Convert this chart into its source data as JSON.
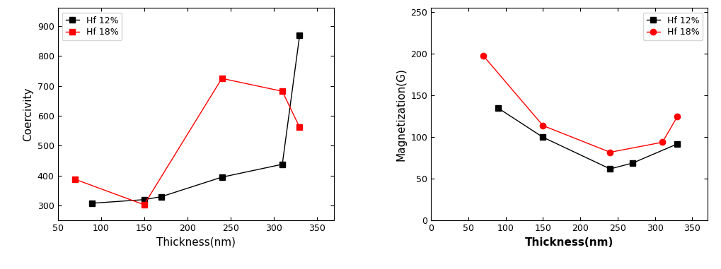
{
  "coercivity": {
    "hf12_x": [
      90,
      150,
      170,
      240,
      310,
      330
    ],
    "hf12_y": [
      308,
      320,
      330,
      395,
      438,
      868
    ],
    "hf18_x": [
      70,
      150,
      240,
      310,
      330
    ],
    "hf18_y": [
      388,
      303,
      725,
      682,
      562
    ],
    "ylabel": "Coercivity",
    "xlabel": "Thickness(nm)",
    "xlabel_bold": false,
    "xlim": [
      50,
      370
    ],
    "ylim": [
      250,
      960
    ],
    "yticks": [
      300,
      400,
      500,
      600,
      700,
      800,
      900
    ],
    "xticks": [
      50,
      100,
      150,
      200,
      250,
      300,
      350
    ]
  },
  "magnetization": {
    "hf12_x": [
      90,
      150,
      240,
      270,
      330
    ],
    "hf12_y": [
      135,
      100,
      62,
      69,
      92
    ],
    "hf18_x": [
      70,
      150,
      240,
      310,
      330
    ],
    "hf18_y": [
      198,
      114,
      82,
      94,
      125
    ],
    "ylabel": "Magnetization(G)",
    "xlabel": "Thickness(nm)",
    "xlabel_bold": true,
    "xlim": [
      0,
      370
    ],
    "ylim": [
      0,
      255
    ],
    "yticks": [
      0,
      50,
      100,
      150,
      200,
      250
    ],
    "xticks": [
      0,
      50,
      100,
      150,
      200,
      250,
      300,
      350
    ]
  },
  "legend_hf12": "Hf 12%",
  "legend_hf18": "Hf 18%",
  "color_hf12": "#000000",
  "color_hf18": "#ff0000",
  "marker_hf12_left": "s",
  "marker_hf18_left": "s",
  "marker_hf12_right": "s",
  "marker_hf18_right": "o",
  "background_color": "#ffffff",
  "markersize": 6,
  "linewidth": 1.0,
  "legend_fontsize": 9,
  "axis_label_fontsize": 11,
  "tick_fontsize": 9,
  "left_legend_loc": "upper left",
  "right_legend_loc": "upper right"
}
